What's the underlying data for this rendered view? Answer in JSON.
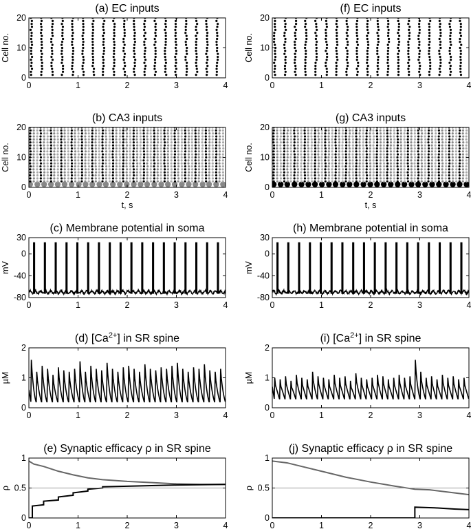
{
  "figure": {
    "panels_note": "Two columns of five stacked panels each; left column (a)-(e), right column (f)-(j)."
  },
  "chart_data": [
    {
      "id": "a",
      "type": "scatter",
      "title": "(a) EC inputs",
      "title_sup": "",
      "title_tail": "",
      "ylabel": "Cell no.",
      "xlabel": "",
      "xlim": [
        0,
        4
      ],
      "ylim": [
        0,
        20
      ],
      "xticks": [
        "0",
        "1",
        "2",
        "3",
        "4"
      ],
      "yticks": [
        "0",
        "10",
        "20"
      ],
      "raster": {
        "burst_times_s": [
          0.05,
          0.26,
          0.47,
          0.68,
          0.89,
          1.1,
          1.31,
          1.52,
          1.73,
          1.94,
          2.15,
          2.36,
          2.57,
          2.78,
          2.99,
          3.2,
          3.41,
          3.62,
          3.83
        ],
        "cells": 20,
        "big_marker_cell1": false
      }
    },
    {
      "id": "b",
      "type": "scatter",
      "title": "(b) CA3 inputs",
      "title_sup": "",
      "title_tail": "",
      "ylabel": "Cell no.",
      "xlabel": "t, s",
      "xlim": [
        0,
        4
      ],
      "ylim": [
        0,
        20
      ],
      "xticks": [
        "0",
        "1",
        "2",
        "3",
        "4"
      ],
      "yticks": [
        "0",
        "10",
        "20"
      ],
      "raster": {
        "burst_times_s": [
          0.03,
          0.1,
          0.17,
          0.24,
          0.31,
          0.38,
          0.45,
          0.52,
          0.59,
          0.66,
          0.73,
          0.8,
          0.87,
          0.94,
          1.01,
          1.08,
          1.15,
          1.22,
          1.29,
          1.36,
          1.43,
          1.5,
          1.57,
          1.64,
          1.71,
          1.78,
          1.85,
          1.92,
          1.99,
          2.06,
          2.13,
          2.2,
          2.27,
          2.34,
          2.41,
          2.48,
          2.55,
          2.62,
          2.69,
          2.76,
          2.83,
          2.9,
          2.97,
          3.04,
          3.11,
          3.18,
          3.25,
          3.32,
          3.39,
          3.46,
          3.53,
          3.6,
          3.67,
          3.74,
          3.81,
          3.88,
          3.95
        ],
        "cells": 20,
        "big_marker_cell1": true,
        "big_marker_color": "#888888"
      }
    },
    {
      "id": "c",
      "type": "line",
      "title": "(c) Membrane potential in soma",
      "title_sup": "",
      "title_tail": "",
      "ylabel": "mV",
      "xlabel": "",
      "xlim": [
        0,
        4
      ],
      "ylim": [
        -80,
        30
      ],
      "xticks": [
        "0",
        "1",
        "2",
        "3",
        "4"
      ],
      "yticks": [
        "-80",
        "-40",
        "0",
        "30"
      ],
      "spikes": {
        "times_s": [
          0.1,
          0.32,
          0.54,
          0.76,
          0.98,
          1.2,
          1.42,
          1.64,
          1.86,
          2.08,
          2.3,
          2.52,
          2.74,
          2.96,
          3.18,
          3.4,
          3.62,
          3.84
        ],
        "peak_mV": 20,
        "rest_mV": -70
      },
      "series": [
        {
          "color": "#000000"
        }
      ]
    },
    {
      "id": "d",
      "type": "line",
      "title": "(d) [Ca",
      "title_sup": "2+",
      "title_tail": "] in SR spine",
      "ylabel": "µM",
      "xlabel": "",
      "xlim": [
        0,
        4
      ],
      "ylim": [
        0,
        2
      ],
      "xticks": [
        "0",
        "1",
        "2",
        "3",
        "4"
      ],
      "yticks": [
        "0",
        "1",
        "2"
      ],
      "transients": {
        "times_s": [
          0.04,
          0.15,
          0.26,
          0.37,
          0.48,
          0.59,
          0.7,
          0.81,
          0.92,
          1.03,
          1.14,
          1.25,
          1.36,
          1.47,
          1.58,
          1.69,
          1.8,
          1.91,
          2.02,
          2.13,
          2.24,
          2.35,
          2.46,
          2.57,
          2.68,
          2.79,
          2.9,
          3.01,
          3.12,
          3.23,
          3.34,
          3.45,
          3.56,
          3.67,
          3.78,
          3.89
        ],
        "peaks_uM": [
          1.6,
          1.2,
          1.4,
          1.3,
          1.1,
          1.35,
          1.25,
          1.2,
          1.3,
          1.55,
          1.2,
          1.4,
          1.3,
          1.25,
          1.5,
          1.3,
          1.2,
          1.35,
          1.4,
          1.3,
          1.2,
          1.45,
          1.3,
          1.25,
          1.35,
          1.3,
          1.4,
          1.5,
          1.3,
          1.2,
          1.35,
          1.3,
          1.45,
          1.25,
          1.2,
          1.3
        ],
        "baseline_uM": 0.2
      },
      "series": [
        {
          "color": "#000000"
        }
      ]
    },
    {
      "id": "e",
      "type": "line",
      "title": "(e) Synaptic efficacy ρ in SR spine",
      "title_sup": "",
      "title_tail": "",
      "ylabel": "ρ",
      "xlabel": "",
      "xlim": [
        0,
        4
      ],
      "ylim": [
        0,
        1
      ],
      "xticks": [
        "0",
        "1",
        "2",
        "3",
        "4"
      ],
      "yticks": [
        "0",
        "0.5",
        "1"
      ],
      "series": [
        {
          "color": "#666666",
          "points": [
            [
              0,
              0.95
            ],
            [
              0.1,
              0.9
            ],
            [
              0.3,
              0.86
            ],
            [
              0.6,
              0.78
            ],
            [
              0.9,
              0.72
            ],
            [
              1.2,
              0.67
            ],
            [
              1.5,
              0.64
            ],
            [
              2.0,
              0.61
            ],
            [
              2.5,
              0.59
            ],
            [
              3.0,
              0.57
            ],
            [
              3.5,
              0.56
            ],
            [
              4.0,
              0.56
            ]
          ]
        },
        {
          "color": "#000000",
          "points": [
            [
              0,
              0.0
            ],
            [
              0.07,
              0.0
            ],
            [
              0.07,
              0.2
            ],
            [
              0.3,
              0.22
            ],
            [
              0.3,
              0.28
            ],
            [
              0.6,
              0.3
            ],
            [
              0.6,
              0.35
            ],
            [
              0.9,
              0.38
            ],
            [
              0.9,
              0.42
            ],
            [
              1.2,
              0.45
            ],
            [
              1.2,
              0.48
            ],
            [
              1.5,
              0.5
            ],
            [
              1.5,
              0.52
            ],
            [
              2.0,
              0.53
            ],
            [
              2.5,
              0.54
            ],
            [
              3.0,
              0.55
            ],
            [
              4.0,
              0.56
            ]
          ]
        },
        {
          "color": "#999999",
          "points": [
            [
              0,
              0.5
            ],
            [
              4,
              0.5
            ]
          ]
        }
      ]
    },
    {
      "id": "f",
      "type": "scatter",
      "title": "(f) EC inputs",
      "title_sup": "",
      "title_tail": "",
      "ylabel": "Cell no.",
      "xlabel": "",
      "xlim": [
        0,
        4
      ],
      "ylim": [
        0,
        20
      ],
      "xticks": [
        "0",
        "1",
        "2",
        "3",
        "4"
      ],
      "yticks": [
        "0",
        "10",
        "20"
      ],
      "raster": {
        "burst_times_s": [
          0.05,
          0.26,
          0.47,
          0.68,
          0.89,
          1.1,
          1.31,
          1.52,
          1.73,
          1.94,
          2.15,
          2.36,
          2.57,
          2.78,
          2.99,
          3.2,
          3.41,
          3.62,
          3.83
        ],
        "cells": 20,
        "big_marker_cell1": false
      }
    },
    {
      "id": "g",
      "type": "scatter",
      "title": "(g) CA3 inputs",
      "title_sup": "",
      "title_tail": "",
      "ylabel": "Cell no.",
      "xlabel": "t, s",
      "xlim": [
        0,
        4
      ],
      "ylim": [
        0,
        20
      ],
      "xticks": [
        "0",
        "1",
        "2",
        "3",
        "4"
      ],
      "yticks": [
        "0",
        "10",
        "20"
      ],
      "raster": {
        "burst_times_s": [
          0.03,
          0.1,
          0.17,
          0.24,
          0.31,
          0.38,
          0.45,
          0.52,
          0.59,
          0.66,
          0.73,
          0.8,
          0.87,
          0.94,
          1.01,
          1.08,
          1.15,
          1.22,
          1.29,
          1.36,
          1.43,
          1.5,
          1.57,
          1.64,
          1.71,
          1.78,
          1.85,
          1.92,
          1.99,
          2.06,
          2.13,
          2.2,
          2.27,
          2.34,
          2.41,
          2.48,
          2.55,
          2.62,
          2.69,
          2.76,
          2.83,
          2.9,
          2.97,
          3.04,
          3.11,
          3.18,
          3.25,
          3.32,
          3.39,
          3.46,
          3.53,
          3.6,
          3.67,
          3.74,
          3.81,
          3.88,
          3.95
        ],
        "cells": 20,
        "big_marker_cell1": true,
        "big_marker_color": "#000000"
      }
    },
    {
      "id": "h",
      "type": "line",
      "title": "(h) Membrane potential in soma",
      "title_sup": "",
      "title_tail": "",
      "ylabel": "mV",
      "xlabel": "",
      "xlim": [
        0,
        4
      ],
      "ylim": [
        -80,
        30
      ],
      "xticks": [
        "0",
        "1",
        "2",
        "3",
        "4"
      ],
      "yticks": [
        "-80",
        "-40",
        "0",
        "30"
      ],
      "spikes": {
        "times_s": [
          0.1,
          0.32,
          0.54,
          0.76,
          0.98,
          1.2,
          1.42,
          1.64,
          1.86,
          2.08,
          2.3,
          2.52,
          2.74,
          2.96,
          3.18,
          3.4,
          3.62,
          3.84
        ],
        "peak_mV": 20,
        "rest_mV": -70
      },
      "series": [
        {
          "color": "#000000"
        }
      ]
    },
    {
      "id": "i",
      "type": "line",
      "title": "(i) [Ca",
      "title_sup": "2+",
      "title_tail": "] in SR spine",
      "ylabel": "µM",
      "xlabel": "",
      "xlim": [
        0,
        4
      ],
      "ylim": [
        0,
        2
      ],
      "xticks": [
        "0",
        "1",
        "2",
        "3",
        "4"
      ],
      "yticks": [
        "0",
        "1",
        "2"
      ],
      "transients": {
        "times_s": [
          0.04,
          0.15,
          0.26,
          0.37,
          0.48,
          0.59,
          0.7,
          0.81,
          0.92,
          1.03,
          1.14,
          1.25,
          1.36,
          1.47,
          1.58,
          1.69,
          1.8,
          1.91,
          2.02,
          2.13,
          2.24,
          2.35,
          2.46,
          2.57,
          2.68,
          2.79,
          2.9,
          3.01,
          3.12,
          3.23,
          3.34,
          3.45,
          3.56,
          3.67,
          3.78,
          3.89
        ],
        "peaks_uM": [
          1.0,
          0.95,
          1.05,
          0.9,
          1.1,
          1.0,
          0.95,
          1.2,
          1.05,
          1.0,
          0.95,
          1.1,
          1.0,
          1.05,
          0.9,
          1.15,
          1.0,
          0.95,
          1.0,
          1.1,
          1.05,
          0.95,
          1.0,
          1.1,
          1.0,
          1.05,
          1.6,
          1.2,
          1.0,
          1.05,
          0.95,
          1.1,
          1.0,
          1.05,
          0.95,
          1.0
        ],
        "baseline_uM": 0.3
      },
      "series": [
        {
          "color": "#000000"
        }
      ]
    },
    {
      "id": "j",
      "type": "line",
      "title": "(j) Synaptic efficacy ρ in SR spine",
      "title_sup": "",
      "title_tail": "",
      "ylabel": "ρ",
      "xlabel": "",
      "xlim": [
        0,
        4
      ],
      "ylim": [
        0,
        1
      ],
      "xticks": [
        "0",
        "1",
        "2",
        "3",
        "4"
      ],
      "yticks": [
        "0",
        "0.5",
        "1"
      ],
      "series": [
        {
          "color": "#666666",
          "points": [
            [
              0,
              0.95
            ],
            [
              0.3,
              0.92
            ],
            [
              0.6,
              0.86
            ],
            [
              1.0,
              0.78
            ],
            [
              1.5,
              0.68
            ],
            [
              2.0,
              0.6
            ],
            [
              2.5,
              0.53
            ],
            [
              2.9,
              0.48
            ],
            [
              3.2,
              0.47
            ],
            [
              3.6,
              0.43
            ],
            [
              4.0,
              0.39
            ]
          ]
        },
        {
          "color": "#000000",
          "points": [
            [
              0,
              0.0
            ],
            [
              2.9,
              0.0
            ],
            [
              2.9,
              0.18
            ],
            [
              3.3,
              0.17
            ],
            [
              3.7,
              0.15
            ],
            [
              4.0,
              0.14
            ]
          ]
        },
        {
          "color": "#999999",
          "points": [
            [
              0,
              0.5
            ],
            [
              4,
              0.5
            ]
          ]
        }
      ]
    }
  ]
}
